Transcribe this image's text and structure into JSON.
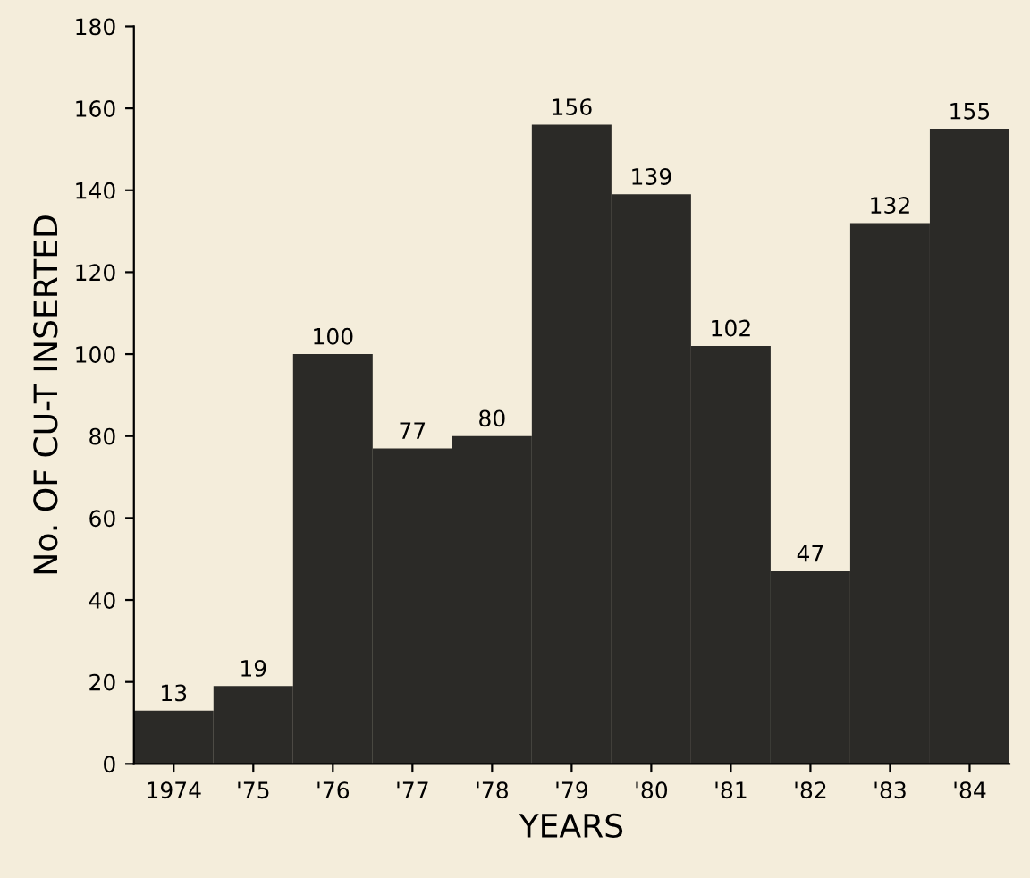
{
  "chart_data": {
    "type": "bar",
    "xlabel": "YEARS",
    "ylabel": "No. OF CU-T INSERTED",
    "categories": [
      "1974",
      "'75",
      "'76",
      "'77",
      "'78",
      "'79",
      "'80",
      "'81",
      "'82",
      "'83",
      "'84"
    ],
    "values": [
      13,
      19,
      100,
      77,
      80,
      156,
      139,
      102,
      47,
      132,
      155
    ],
    "color": "#2b2a27",
    "ylim": [
      0,
      180
    ],
    "yticks": [
      0,
      20,
      40,
      60,
      80,
      100,
      120,
      140,
      160,
      180
    ],
    "data_labels": true
  }
}
